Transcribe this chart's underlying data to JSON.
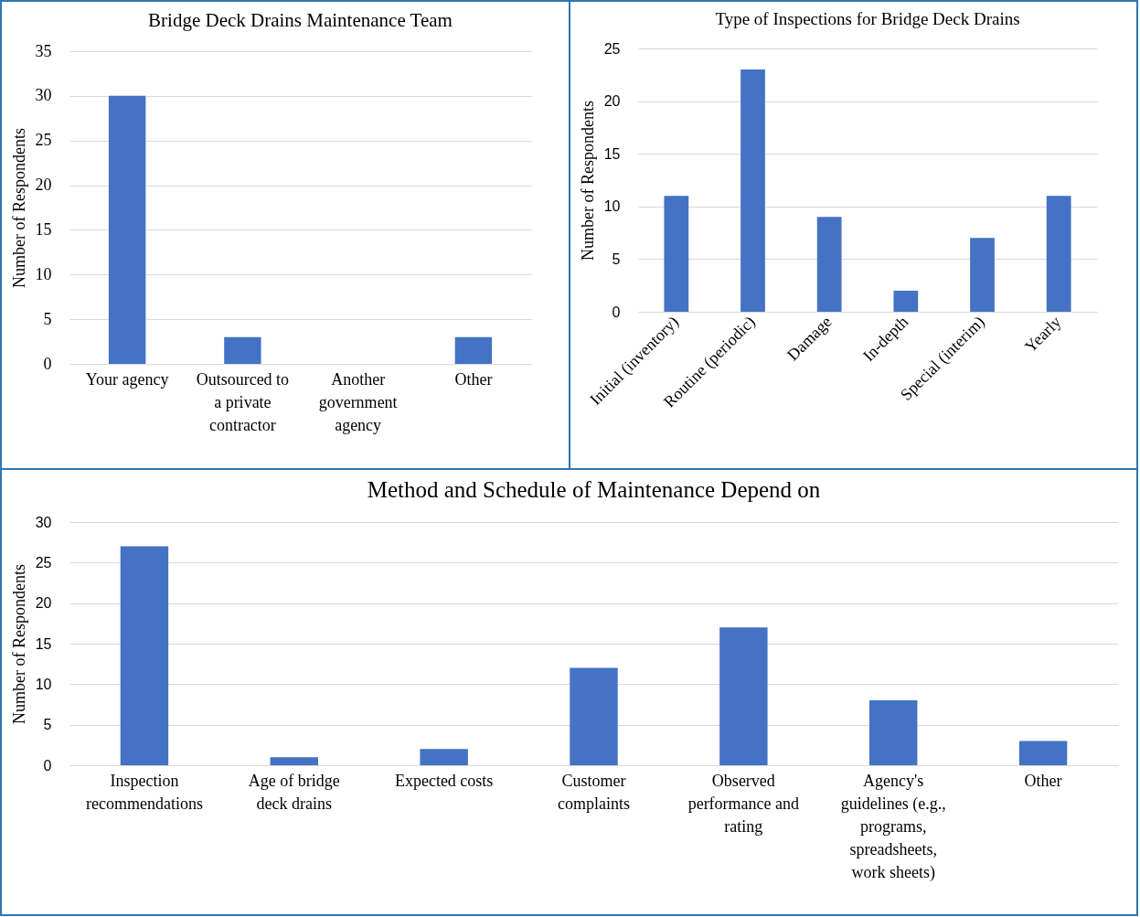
{
  "chart_data": [
    {
      "type": "bar",
      "title": "Bridge Deck Drains Maintenance Team",
      "ylabel": "Number of Respondents",
      "categories": [
        "Your agency",
        "Outsourced to a private contractor",
        "Another government agency",
        "Other"
      ],
      "values": [
        30,
        3,
        0,
        3
      ],
      "color": "#4472c4",
      "ylim": [
        0,
        35
      ],
      "yticks": [
        0,
        5,
        10,
        15,
        20,
        25,
        30,
        35
      ],
      "grid": "y"
    },
    {
      "type": "bar",
      "title": "Type of Inspections for Bridge Deck Drains",
      "ylabel": "Number of Respondents",
      "categories": [
        "Initial (inventory)",
        "Routine (periodic)",
        "Damage",
        "In-depth",
        "Special (interim)",
        "Yearly"
      ],
      "values": [
        11,
        23,
        9,
        2,
        7,
        11
      ],
      "color": "#4472c4",
      "ylim": [
        0,
        25
      ],
      "yticks": [
        0,
        5,
        10,
        15,
        20,
        25
      ],
      "grid": "y"
    },
    {
      "type": "bar",
      "title": "Method and Schedule of Maintenance Depend on",
      "ylabel": "Number of Respondents",
      "categories": [
        "Inspection recommendations",
        "Age of bridge deck drains",
        "Expected costs",
        "Customer complaints",
        "Observed performance and rating",
        "Agency's guidelines (e.g., programs, spreadsheets, work sheets)",
        "Other"
      ],
      "values": [
        27,
        1,
        2,
        12,
        17,
        8,
        3
      ],
      "color": "#4472c4",
      "ylim": [
        0,
        30
      ],
      "yticks": [
        0,
        5,
        10,
        15,
        20,
        25,
        30
      ],
      "grid": "y"
    }
  ]
}
